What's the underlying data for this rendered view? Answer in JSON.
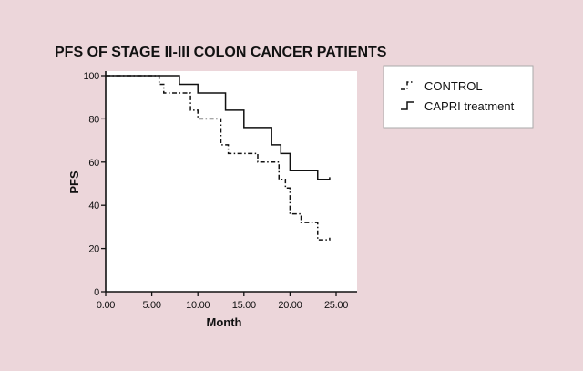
{
  "chart_data": {
    "type": "line",
    "step": true,
    "title": "PFS OF STAGE II-III COLON CANCER PATIENTS",
    "xlabel": "Month",
    "ylabel": "PFS",
    "xlim": [
      0,
      25
    ],
    "ylim": [
      0,
      100
    ],
    "xticks": [
      0,
      5,
      10,
      15,
      20,
      25
    ],
    "xtick_labels": [
      "0.00",
      "5.00",
      "10.00",
      "15.00",
      "20.00",
      "25.00"
    ],
    "yticks": [
      0,
      20,
      40,
      60,
      80,
      100
    ],
    "ytick_labels": [
      "0",
      "20",
      "40",
      "60",
      "80",
      "100"
    ],
    "grid": false,
    "legend_position": "top-right",
    "series": [
      {
        "name": "CONTROL",
        "line_style": "dash-dot",
        "color": "#111111",
        "x": [
          0,
          5.8,
          6.3,
          7.2,
          9.2,
          10.0,
          11.5,
          12.5,
          13.3,
          15.0,
          16.5,
          18.8,
          19.5,
          20.0,
          21.2,
          23.0,
          24.3
        ],
        "y": [
          100,
          96,
          92,
          92,
          84,
          80,
          80,
          68,
          64,
          64,
          60,
          52,
          48,
          36,
          32,
          24,
          25
        ]
      },
      {
        "name": "CAPRI treatment",
        "line_style": "solid",
        "color": "#111111",
        "x": [
          0,
          8.0,
          10.0,
          13.0,
          15.0,
          18.0,
          19.0,
          20.0,
          23.0,
          24.3
        ],
        "y": [
          100,
          96,
          92,
          84,
          76,
          68,
          64,
          56,
          52,
          53
        ]
      }
    ]
  }
}
